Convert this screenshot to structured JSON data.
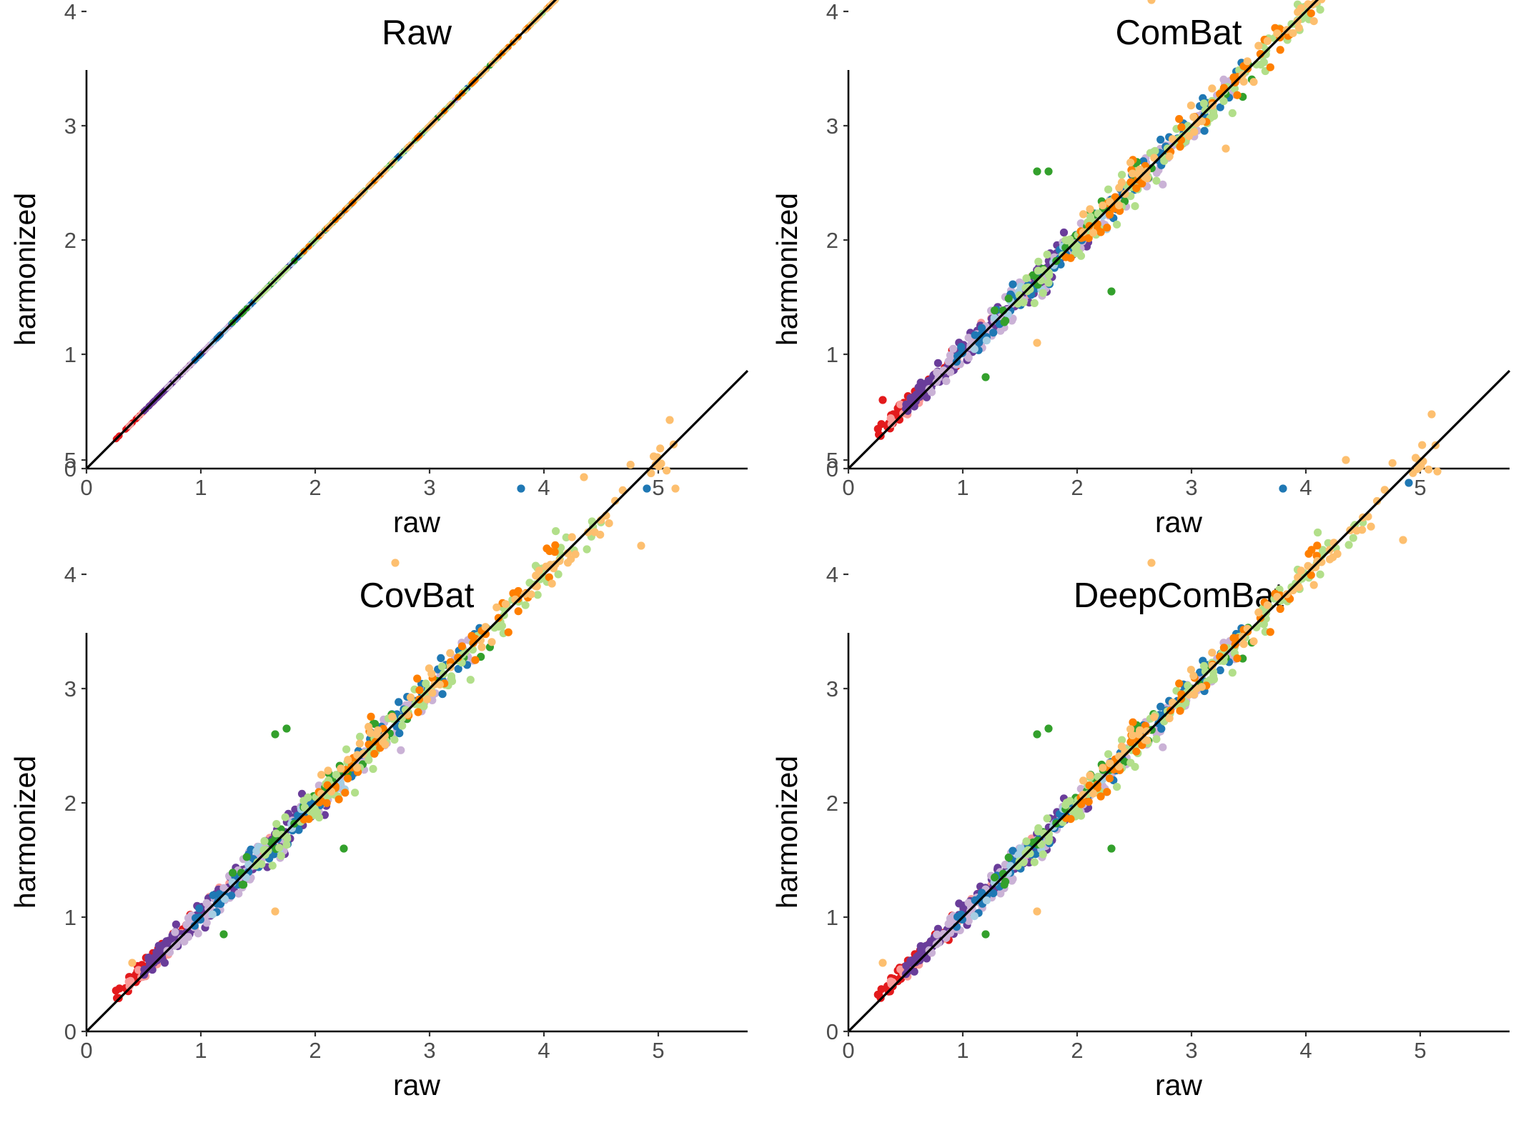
{
  "colors": {
    "background": "#ffffff",
    "axis": "#000000",
    "tick_text": "#4d4d4d",
    "identity_line": "#000000",
    "palette": [
      "#e31a1c",
      "#fb9a99",
      "#6a3d9a",
      "#cab2d6",
      "#1f78b4",
      "#a6cee3",
      "#33a02c",
      "#b2df8a",
      "#ff7f00",
      "#fdbf6f"
    ]
  },
  "chart_data": [
    {
      "type": "scatter",
      "title": "Raw",
      "xlabel": "raw",
      "ylabel": "harmonized",
      "xlim": [
        0,
        5.75
      ],
      "ylim": [
        0,
        5.75
      ],
      "xticks": [
        "0",
        "1",
        "2",
        "3",
        "4",
        "5"
      ],
      "yticks": [
        "0",
        "1",
        "2",
        "3",
        "4",
        "5"
      ],
      "reference_line": {
        "slope": 1,
        "intercept": 0
      },
      "grid": false,
      "legend": "none",
      "noise_sd": 0,
      "outliers": []
    },
    {
      "type": "scatter",
      "title": "ComBat",
      "xlabel": "raw",
      "ylabel": "harmonized",
      "xlim": [
        0,
        5.75
      ],
      "ylim": [
        0,
        5.75
      ],
      "xticks": [
        "0",
        "1",
        "2",
        "3",
        "4",
        "5"
      ],
      "yticks": [
        "0",
        "1",
        "2",
        "3",
        "4",
        "5"
      ],
      "reference_line": {
        "slope": 1,
        "intercept": 0
      },
      "grid": false,
      "legend": "none",
      "noise_sd": 0.085,
      "outliers": [
        [
          2.65,
          4.1
        ],
        [
          1.65,
          2.6
        ],
        [
          1.75,
          2.6
        ],
        [
          2.3,
          1.55
        ],
        [
          1.65,
          1.1
        ],
        [
          1.2,
          0.8
        ],
        [
          5.1,
          5.4
        ],
        [
          5.15,
          4.8
        ],
        [
          4.9,
          4.85
        ],
        [
          4.85,
          4.2
        ],
        [
          4.8,
          4.5
        ],
        [
          4.35,
          4.85
        ],
        [
          3.3,
          2.8
        ],
        [
          0.3,
          0.6
        ]
      ]
    },
    {
      "type": "scatter",
      "title": "CovBat",
      "xlabel": "raw",
      "ylabel": "harmonized",
      "xlim": [
        0,
        5.75
      ],
      "ylim": [
        0,
        5.75
      ],
      "xticks": [
        "0",
        "1",
        "2",
        "3",
        "4",
        "5"
      ],
      "yticks": [
        "0",
        "1",
        "2",
        "3",
        "4",
        "5"
      ],
      "reference_line": {
        "slope": 1,
        "intercept": 0
      },
      "grid": false,
      "legend": "none",
      "noise_sd": 0.09,
      "outliers": [
        [
          2.7,
          4.1
        ],
        [
          1.65,
          2.6
        ],
        [
          1.75,
          2.65
        ],
        [
          2.25,
          1.6
        ],
        [
          1.65,
          1.05
        ],
        [
          1.2,
          0.85
        ],
        [
          5.1,
          5.35
        ],
        [
          5.15,
          4.75
        ],
        [
          4.9,
          4.75
        ],
        [
          4.85,
          4.25
        ],
        [
          4.35,
          4.85
        ],
        [
          3.8,
          4.75
        ],
        [
          0.4,
          0.6
        ]
      ]
    },
    {
      "type": "scatter",
      "title": "DeepComBat",
      "xlabel": "raw",
      "ylabel": "harmonized",
      "xlim": [
        0,
        5.75
      ],
      "ylim": [
        0,
        5.75
      ],
      "xticks": [
        "0",
        "1",
        "2",
        "3",
        "4",
        "5"
      ],
      "yticks": [
        "0",
        "1",
        "2",
        "3",
        "4",
        "5"
      ],
      "reference_line": {
        "slope": 1,
        "intercept": 0
      },
      "grid": false,
      "legend": "none",
      "noise_sd": 0.08,
      "outliers": [
        [
          2.65,
          4.1
        ],
        [
          1.65,
          2.6
        ],
        [
          1.75,
          2.65
        ],
        [
          2.3,
          1.6
        ],
        [
          1.65,
          1.05
        ],
        [
          1.2,
          0.85
        ],
        [
          5.1,
          5.4
        ],
        [
          5.15,
          4.9
        ],
        [
          4.9,
          4.8
        ],
        [
          4.85,
          4.3
        ],
        [
          4.35,
          5.0
        ],
        [
          3.8,
          4.75
        ],
        [
          0.3,
          0.6
        ]
      ]
    }
  ]
}
